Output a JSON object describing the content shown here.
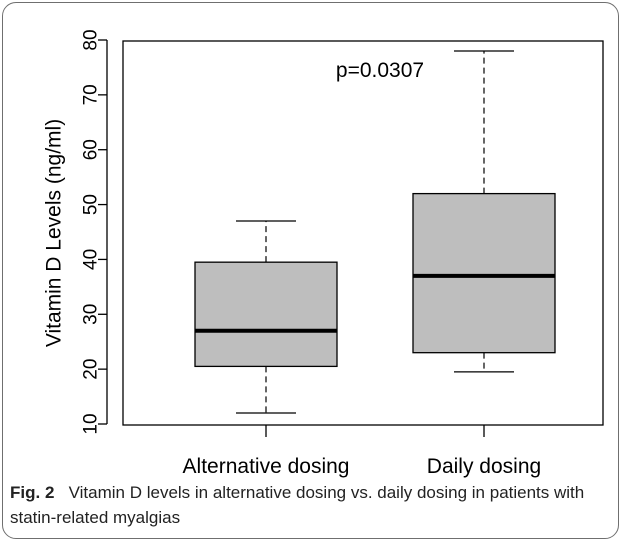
{
  "caption": {
    "figure_label": "Fig. 2",
    "text": "Vitamin D levels in alternative dosing vs. daily dosing in patients with statin-related myalgias"
  },
  "chart_data": {
    "type": "box",
    "title": "",
    "xlabel": "",
    "ylabel": "Vitamin D Levels (ng/ml)",
    "ylim": [
      10,
      80
    ],
    "yticks": [
      10,
      20,
      30,
      40,
      50,
      60,
      70,
      80
    ],
    "annotation": "p=0.0307",
    "grid": false,
    "box_color": "#bebebe",
    "categories": [
      "Alternative dosing",
      "Daily dosing"
    ],
    "boxes": [
      {
        "category": "Alternative dosing",
        "min": 12,
        "q1": 20.5,
        "median": 27,
        "q3": 39.5,
        "max": 47
      },
      {
        "category": "Daily dosing",
        "min": 19.5,
        "q1": 23,
        "median": 37,
        "q3": 52,
        "max": 78
      }
    ]
  }
}
